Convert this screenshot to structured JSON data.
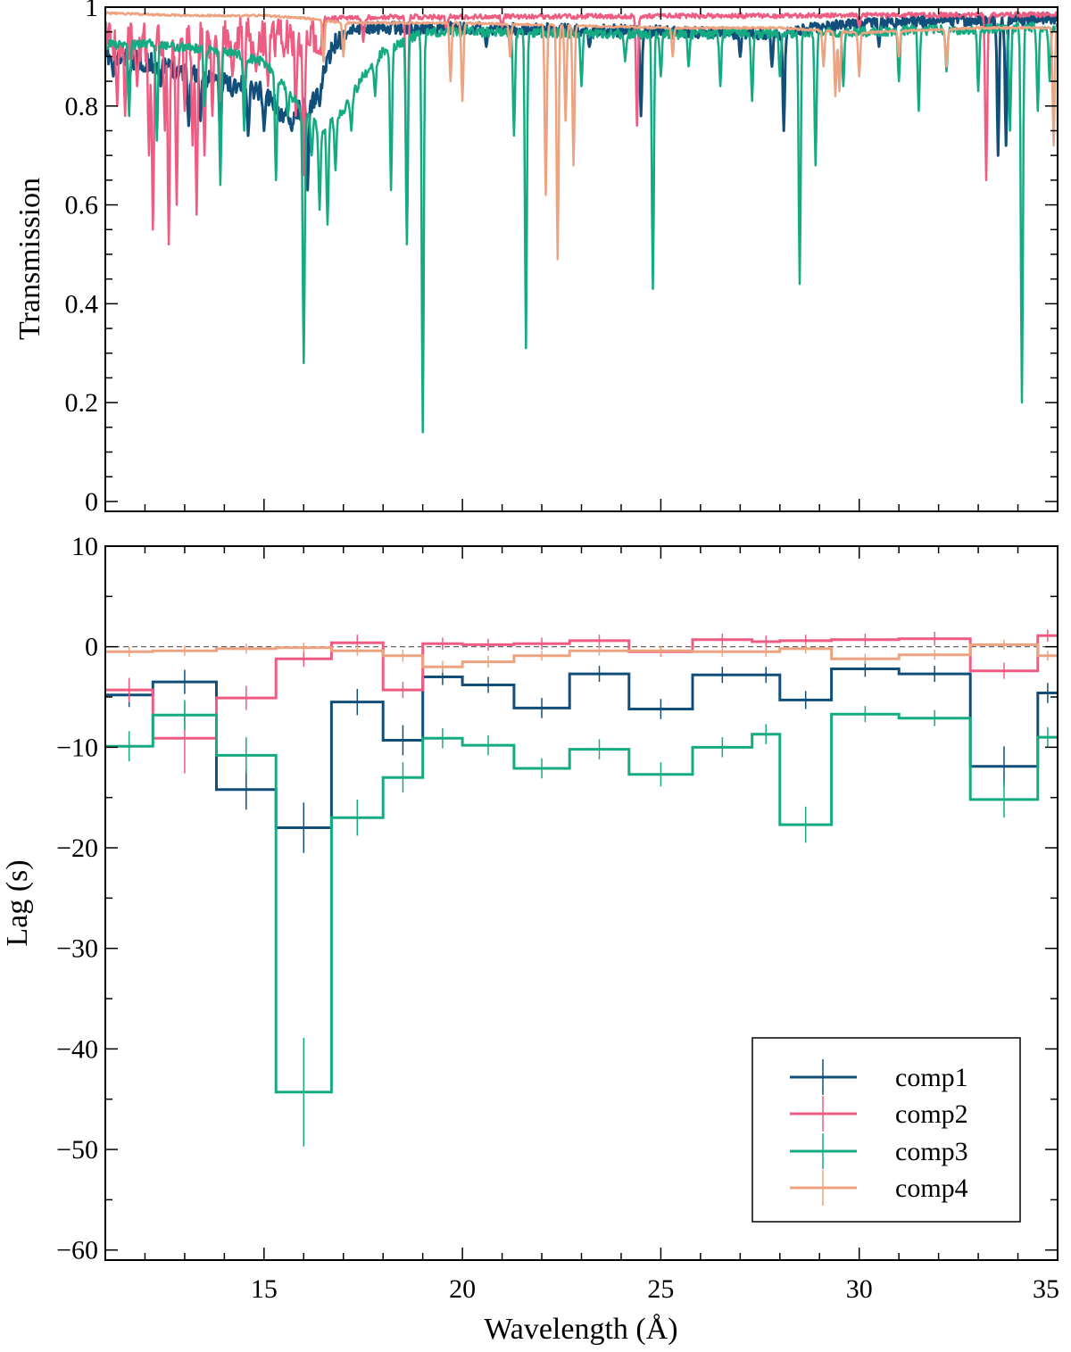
{
  "colors": {
    "comp1": "#114e7a",
    "comp2": "#ee5c82",
    "comp3": "#15ab82",
    "comp4": "#eda37f",
    "axis": "#000000",
    "zero_line": "#555555"
  },
  "chart_data": [
    {
      "type": "line",
      "panel": "top",
      "title": "",
      "xlabel": "",
      "ylabel": "Transmission",
      "xlim": [
        11,
        35
      ],
      "ylim": [
        -0.02,
        1.0
      ],
      "yticks": [
        0,
        0.2,
        0.4,
        0.6,
        0.8,
        1
      ],
      "ytick_labels": [
        "0",
        "0.2",
        "0.4",
        "0.6",
        "0.8",
        "1"
      ],
      "series": [
        {
          "name": "comp1",
          "baseline": [
            [
              11,
              0.92
            ],
            [
              12,
              0.91
            ],
            [
              13,
              0.89
            ],
            [
              14,
              0.87
            ],
            [
              15,
              0.85
            ],
            [
              15.5,
              0.8
            ],
            [
              16.2,
              0.82
            ],
            [
              16.8,
              0.95
            ],
            [
              17.3,
              0.97
            ],
            [
              20,
              0.97
            ],
            [
              24,
              0.965
            ],
            [
              26,
              0.96
            ],
            [
              28,
              0.96
            ],
            [
              29,
              0.97
            ],
            [
              30,
              0.98
            ],
            [
              35,
              0.99
            ]
          ],
          "lines": [
            [
              11.2,
              0.86
            ],
            [
              11.6,
              0.85
            ],
            [
              12.0,
              0.87
            ],
            [
              12.4,
              0.84
            ],
            [
              13.1,
              0.76
            ],
            [
              13.4,
              0.77
            ],
            [
              13.9,
              0.73
            ],
            [
              14.2,
              0.82
            ],
            [
              14.6,
              0.74
            ],
            [
              15.0,
              0.75
            ],
            [
              15.4,
              0.77
            ],
            [
              15.7,
              0.75
            ],
            [
              16.1,
              0.63
            ],
            [
              16.4,
              0.8
            ],
            [
              20.6,
              0.92
            ],
            [
              23.2,
              0.92
            ],
            [
              24.5,
              0.78
            ],
            [
              27.0,
              0.9
            ],
            [
              27.8,
              0.88
            ],
            [
              28.1,
              0.75
            ],
            [
              30.5,
              0.92
            ],
            [
              33.5,
              0.7
            ],
            [
              33.7,
              0.72
            ]
          ]
        },
        {
          "name": "comp2",
          "baseline": [
            [
              11,
              0.97
            ],
            [
              12.5,
              0.97
            ],
            [
              14,
              0.98
            ],
            [
              16,
              0.98
            ],
            [
              18,
              0.985
            ],
            [
              35,
              0.99
            ]
          ],
          "lines": [
            [
              11.3,
              0.8
            ],
            [
              11.5,
              0.78
            ],
            [
              11.8,
              0.84
            ],
            [
              12.1,
              0.7
            ],
            [
              12.2,
              0.55
            ],
            [
              12.5,
              0.75
            ],
            [
              12.6,
              0.52
            ],
            [
              12.8,
              0.6
            ],
            [
              13.0,
              0.79
            ],
            [
              13.2,
              0.72
            ],
            [
              13.3,
              0.58
            ],
            [
              13.5,
              0.7
            ],
            [
              13.7,
              0.78
            ],
            [
              13.9,
              0.81
            ],
            [
              14.2,
              0.86
            ],
            [
              14.5,
              0.78
            ],
            [
              14.8,
              0.87
            ],
            [
              15.1,
              0.84
            ],
            [
              15.5,
              0.9
            ],
            [
              15.8,
              0.78
            ],
            [
              16.0,
              0.66
            ],
            [
              17.5,
              0.93
            ],
            [
              18.6,
              0.53
            ],
            [
              19.6,
              0.95
            ],
            [
              21.0,
              0.96
            ],
            [
              24.4,
              0.76
            ],
            [
              30.0,
              0.96
            ],
            [
              33.2,
              0.65
            ]
          ]
        },
        {
          "name": "comp3",
          "baseline": [
            [
              11,
              0.935
            ],
            [
              12,
              0.935
            ],
            [
              13,
              0.93
            ],
            [
              14,
              0.92
            ],
            [
              15,
              0.9
            ],
            [
              15.5,
              0.85
            ],
            [
              16,
              0.8
            ],
            [
              16.5,
              0.76
            ],
            [
              17,
              0.8
            ],
            [
              17.5,
              0.87
            ],
            [
              18,
              0.92
            ],
            [
              19,
              0.96
            ],
            [
              20,
              0.96
            ],
            [
              25,
              0.955
            ],
            [
              30,
              0.96
            ],
            [
              35,
              0.97
            ]
          ],
          "lines": [
            [
              11.6,
              0.78
            ],
            [
              12.3,
              0.73
            ],
            [
              13.5,
              0.8
            ],
            [
              13.9,
              0.64
            ],
            [
              14.5,
              0.75
            ],
            [
              15.3,
              0.65
            ],
            [
              15.6,
              0.78
            ],
            [
              16.0,
              0.28
            ],
            [
              16.2,
              0.7
            ],
            [
              16.4,
              0.59
            ],
            [
              16.6,
              0.56
            ],
            [
              16.8,
              0.67
            ],
            [
              17.2,
              0.75
            ],
            [
              17.8,
              0.82
            ],
            [
              18.2,
              0.63
            ],
            [
              18.6,
              0.52
            ],
            [
              19.0,
              0.14
            ],
            [
              21.3,
              0.74
            ],
            [
              21.6,
              0.31
            ],
            [
              23.0,
              0.84
            ],
            [
              24.1,
              0.89
            ],
            [
              24.8,
              0.43
            ],
            [
              25.0,
              0.86
            ],
            [
              25.7,
              0.88
            ],
            [
              26.5,
              0.84
            ],
            [
              27.3,
              0.81
            ],
            [
              28.0,
              0.86
            ],
            [
              28.5,
              0.44
            ],
            [
              28.9,
              0.68
            ],
            [
              29.6,
              0.84
            ],
            [
              31.0,
              0.85
            ],
            [
              31.5,
              0.79
            ],
            [
              32.2,
              0.87
            ],
            [
              33.0,
              0.83
            ],
            [
              33.8,
              0.75
            ],
            [
              34.1,
              0.2
            ],
            [
              34.5,
              0.79
            ],
            [
              34.8,
              0.85
            ]
          ]
        },
        {
          "name": "comp4",
          "baseline": [
            [
              11,
              0.99
            ],
            [
              13,
              0.985
            ],
            [
              15,
              0.985
            ],
            [
              16,
              0.98
            ],
            [
              17,
              0.97
            ],
            [
              20,
              0.97
            ],
            [
              25,
              0.96
            ],
            [
              28,
              0.96
            ],
            [
              30,
              0.95
            ],
            [
              33,
              0.96
            ],
            [
              35,
              0.96
            ]
          ],
          "lines": [
            [
              16.5,
              0.89
            ],
            [
              17.0,
              0.9
            ],
            [
              19.7,
              0.85
            ],
            [
              20.0,
              0.81
            ],
            [
              21.2,
              0.9
            ],
            [
              22.1,
              0.62
            ],
            [
              22.4,
              0.49
            ],
            [
              22.6,
              0.77
            ],
            [
              22.8,
              0.68
            ],
            [
              25.3,
              0.9
            ],
            [
              29.1,
              0.88
            ],
            [
              29.4,
              0.82
            ],
            [
              29.5,
              0.83
            ],
            [
              30.0,
              0.86
            ],
            [
              31.0,
              0.9
            ],
            [
              32.2,
              0.88
            ],
            [
              34.9,
              0.72
            ]
          ]
        }
      ]
    },
    {
      "type": "step",
      "panel": "bottom",
      "title": "",
      "xlabel": "Wavelength (Å)",
      "ylabel": "Lag (s)",
      "xlim": [
        11,
        35
      ],
      "ylim": [
        -61,
        10
      ],
      "xticks": [
        15,
        20,
        25,
        30,
        35
      ],
      "xtick_labels": [
        "15",
        "20",
        "25",
        "30",
        "35"
      ],
      "yticks": [
        10,
        0,
        -10,
        -20,
        -30,
        -40,
        -50,
        -60
      ],
      "ytick_labels": [
        "10",
        "0",
        "−10",
        "−20",
        "−30",
        "−40",
        "−50",
        "−60"
      ],
      "zero_line": true,
      "bin_edges": [
        11,
        12.2,
        13.8,
        15.3,
        16.7,
        18.0,
        19.0,
        20.0,
        21.3,
        22.7,
        24.2,
        25.8,
        27.3,
        28.0,
        29.3,
        31.0,
        32.8,
        34.5,
        35
      ],
      "series": [
        {
          "name": "comp1",
          "values": [
            -4.8,
            -3.5,
            -14.2,
            -18.0,
            -5.5,
            -9.3,
            -3.0,
            -3.8,
            -6.1,
            -2.7,
            -6.2,
            -2.8,
            -2.8,
            -5.3,
            -2.2,
            -2.7,
            -11.9,
            -4.6
          ],
          "errors": [
            1.2,
            1.2,
            2.0,
            2.5,
            1.3,
            1.5,
            0.8,
            0.8,
            1.0,
            0.8,
            1.0,
            0.8,
            0.8,
            0.9,
            0.8,
            0.8,
            2.0,
            1.0
          ]
        },
        {
          "name": "comp2",
          "values": [
            -4.3,
            -9.1,
            -5.1,
            -1.2,
            0.4,
            -4.3,
            0.3,
            0.2,
            0.3,
            0.6,
            -0.5,
            0.7,
            0.5,
            0.6,
            0.7,
            0.8,
            -2.4,
            1.1
          ],
          "errors": [
            1.2,
            3.5,
            1.2,
            0.8,
            0.8,
            0.8,
            0.6,
            0.6,
            0.6,
            0.6,
            0.5,
            0.6,
            0.6,
            0.6,
            0.6,
            0.7,
            0.8,
            0.6
          ]
        },
        {
          "name": "comp3",
          "values": [
            -9.9,
            -6.8,
            -10.8,
            -44.3,
            -17.0,
            -13.0,
            -9.1,
            -9.8,
            -12.1,
            -10.2,
            -12.7,
            -10.0,
            -8.7,
            -17.7,
            -6.7,
            -7.1,
            -15.2,
            -9.0
          ],
          "errors": [
            1.5,
            1.5,
            1.8,
            5.4,
            1.8,
            1.5,
            1.0,
            1.0,
            1.0,
            1.0,
            1.2,
            1.0,
            1.0,
            1.8,
            0.8,
            0.8,
            1.8,
            1.0
          ]
        },
        {
          "name": "comp4",
          "values": [
            -0.5,
            -0.4,
            -0.2,
            -0.1,
            -0.4,
            -0.9,
            -2.0,
            -1.5,
            -0.9,
            -0.4,
            -0.4,
            -0.5,
            -0.5,
            -0.2,
            -1.2,
            -0.8,
            0.2,
            -0.9
          ],
          "errors": [
            0.5,
            0.5,
            0.5,
            0.5,
            0.5,
            0.6,
            0.6,
            0.6,
            0.5,
            0.5,
            0.5,
            0.5,
            0.5,
            0.5,
            0.5,
            0.5,
            0.5,
            0.5
          ]
        }
      ],
      "legend": {
        "position": "bottom-right",
        "entries": [
          "comp1",
          "comp2",
          "comp3",
          "comp4"
        ]
      }
    }
  ]
}
